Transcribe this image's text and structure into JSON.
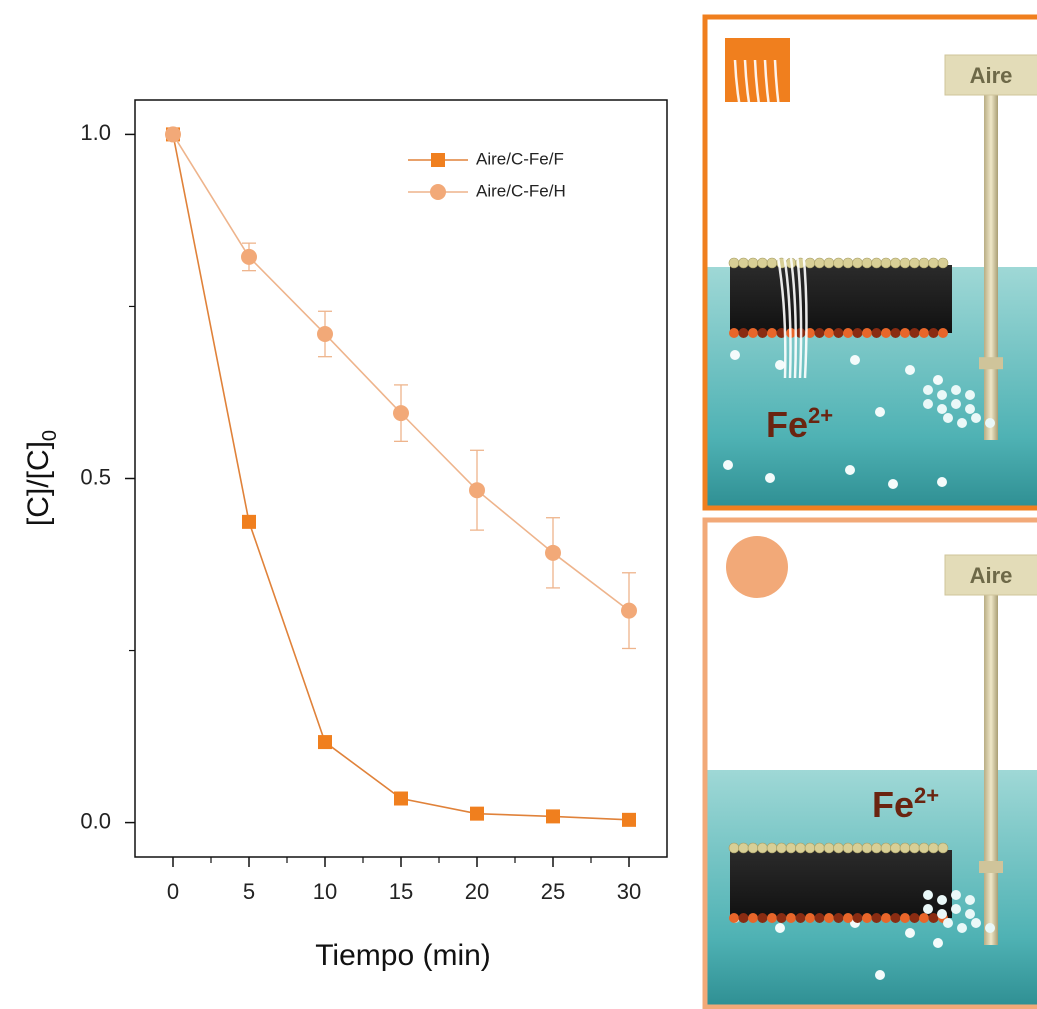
{
  "chart_data": {
    "type": "line",
    "x": [
      0,
      5,
      10,
      15,
      20,
      25,
      30
    ],
    "xlim": [
      -2.5,
      32.5
    ],
    "xticks": [
      0,
      5,
      10,
      15,
      20,
      25,
      30
    ],
    "xminor_ticks": [
      2.5,
      7.5,
      12.5,
      17.5,
      22.5,
      27.5
    ],
    "ylim": [
      -0.05,
      1.05
    ],
    "yticks": [
      {
        "value": 0,
        "label": "0.0"
      },
      {
        "value": 0.5,
        "label": "0.5"
      },
      {
        "value": 1,
        "label": "1.0"
      }
    ],
    "yminor_ticks": [
      0.25,
      0.75
    ],
    "xlabel": "Tiempo (min)",
    "ylabel": "[C]/[C]",
    "ylabel_subscript": "0",
    "legend": "upper right",
    "series": [
      {
        "name": "Aire/C-Fe/F",
        "color": "#f07f1e",
        "line_color": "#e0823a",
        "marker": "square",
        "values": [
          1.0,
          0.437,
          0.117,
          0.035,
          0.013,
          0.009,
          0.004
        ]
      },
      {
        "name": "Aire/C-Fe/H",
        "color": "#f2a978",
        "line_color": "#eeb48c",
        "marker": "circle",
        "values": [
          1.0,
          0.822,
          0.71,
          0.595,
          0.483,
          0.392,
          0.308
        ],
        "errors": [
          0,
          0.02,
          0.033,
          0.041,
          0.058,
          0.051,
          0.055
        ]
      }
    ]
  },
  "diagram": {
    "panels": [
      {
        "label": "Aire",
        "ion": "Fe",
        "charge": "2+"
      },
      {
        "label": "Aire",
        "ion": "Fe",
        "charge": "2+"
      }
    ]
  }
}
